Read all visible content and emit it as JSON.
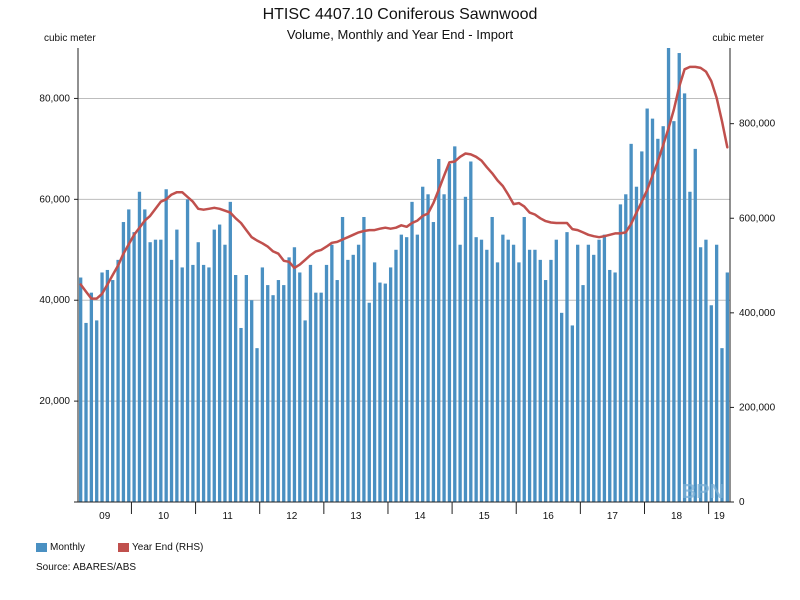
{
  "title": "HTISC 4407.10 Coniferous Sawnwood",
  "subtitle": "Volume, Monthly and Year End - Import",
  "source": "Source: ABARES/ABS",
  "watermark": "BPN",
  "colors": {
    "monthly": "#4a90c2",
    "year_end": "#c0504d",
    "grid": "#bdbdbd",
    "axis": "#222222"
  },
  "chart_data": {
    "type": "bar",
    "ylabel_left": "cubic meter",
    "ylabel_right": "cubic meter",
    "ylim_left": [
      0,
      90000
    ],
    "ylim_right": [
      0,
      960000
    ],
    "yticks_left": [
      "20,000",
      "40,000",
      "60,000",
      "80,000"
    ],
    "yticks_left_values": [
      20000,
      40000,
      60000,
      80000
    ],
    "yticks_right": [
      "0",
      "200,000",
      "400,000",
      "600,000",
      "800,000"
    ],
    "yticks_right_values": [
      0,
      200000,
      400000,
      600000,
      800000
    ],
    "x_year_labels": [
      "09",
      "10",
      "11",
      "12",
      "13",
      "14",
      "15",
      "16",
      "17",
      "18",
      "19"
    ],
    "grid": true,
    "legend_position": "bottom-left",
    "series": [
      {
        "name": "Monthly",
        "type": "bar",
        "axis": "left",
        "values": [
          44500,
          35500,
          41500,
          36000,
          45500,
          46000,
          44000,
          48000,
          55500,
          58000,
          53500,
          61500,
          58000,
          51500,
          52000,
          52000,
          62000,
          48000,
          54000,
          46500,
          60000,
          47000,
          51500,
          47000,
          46500,
          54000,
          55000,
          51000,
          59500,
          45000,
          34500,
          45000,
          40000,
          30500,
          46500,
          43000,
          41000,
          44000,
          43000,
          48500,
          50500,
          45500,
          36000,
          47000,
          41500,
          41500,
          47000,
          51000,
          44000,
          56500,
          48000,
          49000,
          51000,
          56500,
          39500,
          47500,
          43500,
          43300,
          46500,
          50000,
          53000,
          52500,
          59500,
          53000,
          62500,
          61000,
          55500,
          68000,
          61000,
          67000,
          70500,
          51000,
          60500,
          67500,
          52500,
          52000,
          50000,
          56500,
          47500,
          53000,
          52000,
          51000,
          47500,
          56500,
          50000,
          50000,
          48000,
          44000,
          48000,
          52000,
          37500,
          53500,
          35000,
          51000,
          43000,
          51000,
          49000,
          52000,
          53000,
          46000,
          45500,
          59000,
          61000,
          71000,
          62500,
          69500,
          78000,
          76000,
          72000,
          74500,
          90000,
          75500,
          89000,
          81000,
          61500,
          70000,
          50500,
          52000,
          39000,
          51000,
          30500,
          45500
        ]
      },
      {
        "name": "Year End (RHS)",
        "type": "line",
        "axis": "right",
        "values": [
          460000,
          445000,
          430000,
          430000,
          440000,
          460000,
          480000,
          500000,
          525000,
          545000,
          565000,
          580000,
          595000,
          605000,
          620000,
          635000,
          640000,
          650000,
          655000,
          655000,
          645000,
          635000,
          620000,
          618000,
          620000,
          622000,
          620000,
          616000,
          612000,
          600000,
          590000,
          575000,
          560000,
          553000,
          547000,
          540000,
          530000,
          525000,
          510000,
          508000,
          495000,
          502000,
          512000,
          522000,
          530000,
          533000,
          540000,
          548000,
          550000,
          555000,
          560000,
          565000,
          570000,
          573000,
          575000,
          575000,
          578000,
          580000,
          578000,
          580000,
          585000,
          582000,
          590000,
          595000,
          605000,
          610000,
          632000,
          660000,
          690000,
          718000,
          720000,
          730000,
          737000,
          735000,
          730000,
          722000,
          708000,
          695000,
          680000,
          668000,
          650000,
          630000,
          632000,
          625000,
          612000,
          608000,
          600000,
          594000,
          591000,
          590000,
          590000,
          590000,
          577000,
          575000,
          570000,
          565000,
          562000,
          560000,
          562000,
          565000,
          568000,
          568000,
          570000,
          588000,
          612000,
          635000,
          660000,
          690000,
          720000,
          755000,
          790000,
          830000,
          878000,
          915000,
          920000,
          920000,
          918000,
          910000,
          890000,
          855000,
          805000,
          750000
        ]
      }
    ]
  }
}
